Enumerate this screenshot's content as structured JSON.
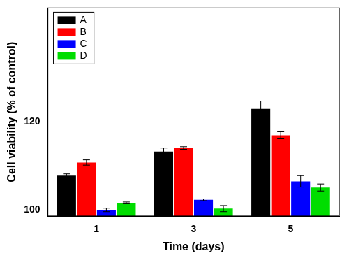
{
  "chart_data": {
    "type": "bar",
    "x_label": "Time (days)",
    "y_label": "Cell viability (% of control)",
    "categories": [
      "1",
      "3",
      "5"
    ],
    "series": [
      {
        "name": "A",
        "color": "#000000",
        "values": [
          107.8,
          113.3,
          123.0
        ],
        "errors": [
          0.4,
          0.8,
          1.8
        ]
      },
      {
        "name": "B",
        "color": "#ff0000",
        "values": [
          110.8,
          114.1,
          117.0
        ],
        "errors": [
          0.6,
          0.3,
          0.8
        ]
      },
      {
        "name": "C",
        "color": "#0000ff",
        "values": [
          100.0,
          102.3,
          106.5
        ],
        "errors": [
          0.4,
          0.2,
          1.3
        ]
      },
      {
        "name": "D",
        "color": "#00dd00",
        "values": [
          101.6,
          100.3,
          105.1
        ],
        "errors": [
          0.2,
          0.7,
          0.8
        ]
      }
    ],
    "ylim": [
      98.6,
      146
    ],
    "yticks": [
      100,
      120
    ],
    "grid": false,
    "legend": "upper left"
  }
}
